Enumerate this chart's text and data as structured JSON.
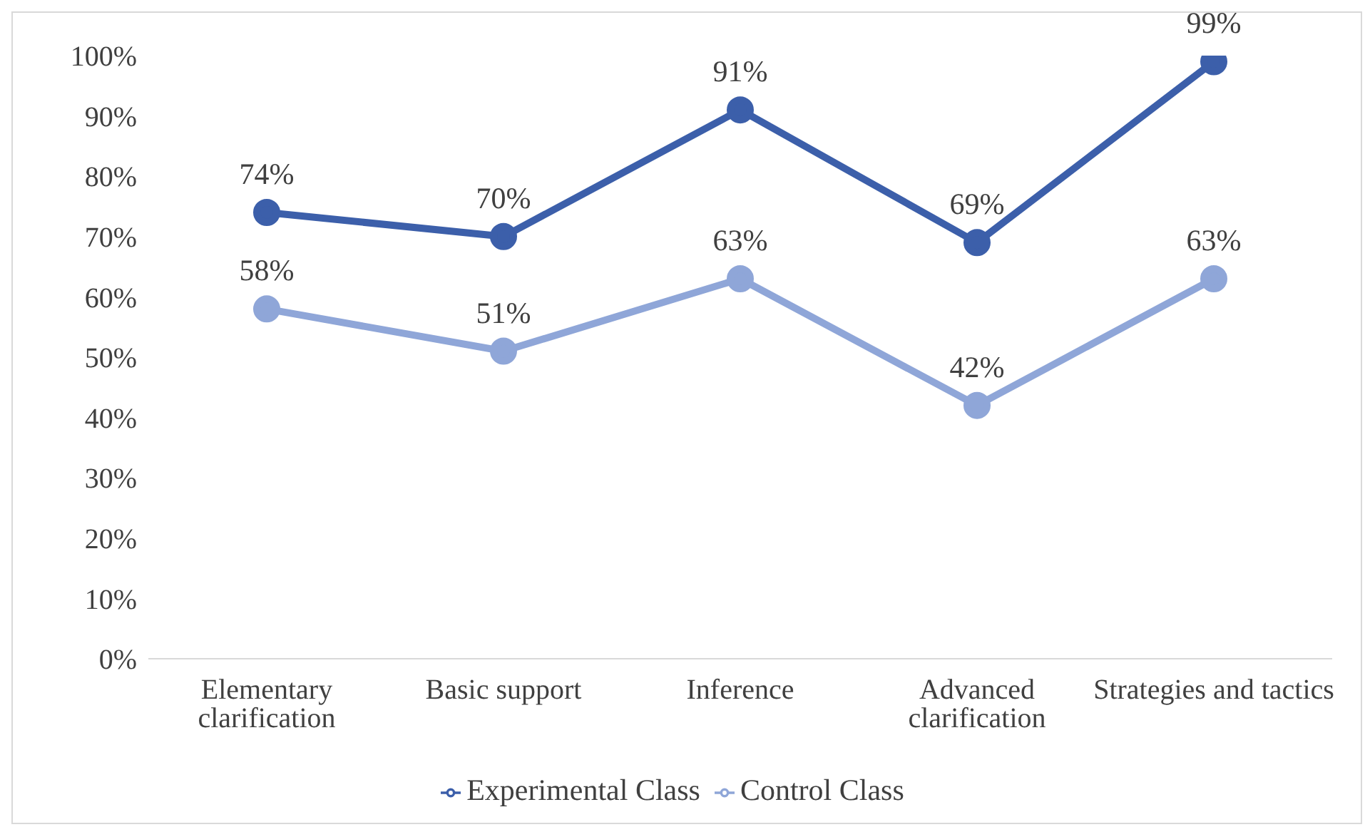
{
  "chart_data": {
    "type": "line",
    "categories": [
      "Elementary clarification",
      "Basic support",
      "Inference",
      "Advanced clarification",
      "Strategies and tactics"
    ],
    "series": [
      {
        "name": "Experimental Class",
        "color": "#3c5faa",
        "values": [
          74,
          70,
          91,
          69,
          99
        ],
        "value_labels": [
          "74%",
          "70%",
          "91%",
          "69%",
          "99%"
        ]
      },
      {
        "name": "Control Class",
        "color": "#8fa6d8",
        "values": [
          58,
          51,
          63,
          42,
          63
        ],
        "value_labels": [
          "58%",
          "51%",
          "63%",
          "42%",
          "63%"
        ]
      }
    ],
    "ylim": [
      0,
      100
    ],
    "yticks": [
      {
        "value": 0,
        "label": "0%"
      },
      {
        "value": 10,
        "label": "10%"
      },
      {
        "value": 20,
        "label": "20%"
      },
      {
        "value": 30,
        "label": "30%"
      },
      {
        "value": 40,
        "label": "40%"
      },
      {
        "value": 50,
        "label": "50%"
      },
      {
        "value": 60,
        "label": "60%"
      },
      {
        "value": 70,
        "label": "70%"
      },
      {
        "value": 80,
        "label": "80%"
      },
      {
        "value": 90,
        "label": "90%"
      },
      {
        "value": 100,
        "label": "100%"
      }
    ],
    "grid": false,
    "legend": "bottom",
    "marker": "circle",
    "line_style": "solid"
  }
}
